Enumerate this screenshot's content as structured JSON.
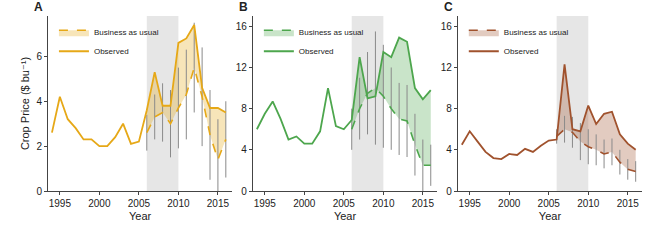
{
  "chart_data": [
    {
      "type": "line",
      "title": "A",
      "y_label": "Crop Price ($ bu⁻¹)",
      "x_label": "Year",
      "xlim": [
        1993.5,
        2016.8
      ],
      "xticks": [
        1995,
        2000,
        2005,
        2010,
        2015
      ],
      "ylim": [
        0,
        7.8
      ],
      "yticks": [
        0,
        2,
        4,
        6
      ],
      "grid": false,
      "legend": "upper left",
      "shaded_period": [
        2006,
        2010
      ],
      "series": [
        {
          "name": "Observed",
          "color": "#e6a817",
          "line_style": "solid",
          "x": [
            1994,
            1995,
            1996,
            1997,
            1998,
            1999,
            2000,
            2001,
            2002,
            2003,
            2004,
            2005,
            2006,
            2007,
            2008,
            2009,
            2010,
            2011,
            2012,
            2013,
            2014,
            2015,
            2016
          ],
          "values": [
            2.6,
            4.2,
            3.2,
            2.8,
            2.3,
            2.3,
            2.0,
            2.0,
            2.4,
            3.0,
            2.1,
            2.2,
            3.6,
            5.3,
            3.8,
            3.8,
            6.6,
            6.8,
            7.4,
            4.6,
            3.7,
            3.7,
            3.5
          ]
        },
        {
          "name": "Business as usual",
          "color": "#e6a817",
          "line_style": "dashed",
          "x": [
            2006,
            2007,
            2008,
            2009,
            2010,
            2011,
            2012,
            2013,
            2014,
            2015,
            2016
          ],
          "values": [
            2.6,
            3.3,
            3.5,
            3.0,
            3.7,
            4.3,
            5.5,
            4.2,
            2.5,
            1.4,
            2.3
          ],
          "error": [
            0.8,
            1.0,
            1.3,
            1.5,
            1.8,
            2.0,
            2.0,
            2.2,
            2.0,
            1.8,
            1.7
          ]
        }
      ]
    },
    {
      "type": "line",
      "title": "B",
      "x_label": "Year",
      "xlim": [
        1993.5,
        2016.8
      ],
      "xticks": [
        1995,
        2000,
        2005,
        2010,
        2015
      ],
      "ylim": [
        0,
        17
      ],
      "yticks": [
        0,
        4,
        8,
        12,
        16
      ],
      "grid": false,
      "legend": "upper left",
      "shaded_period": [
        2006,
        2010
      ],
      "series": [
        {
          "name": "Observed",
          "color": "#4da64d",
          "line_style": "solid",
          "x": [
            1994,
            1995,
            1996,
            1997,
            1998,
            1999,
            2000,
            2001,
            2002,
            2003,
            2004,
            2005,
            2006,
            2007,
            2008,
            2009,
            2010,
            2011,
            2012,
            2013,
            2014,
            2015,
            2016
          ],
          "values": [
            6.0,
            7.5,
            8.7,
            7.0,
            5.0,
            5.3,
            4.6,
            4.6,
            5.8,
            10.0,
            6.3,
            6.0,
            6.9,
            13.0,
            9.0,
            9.2,
            13.5,
            13.0,
            14.9,
            14.5,
            10.0,
            8.9,
            9.8
          ]
        },
        {
          "name": "Business as usual",
          "color": "#4da64d",
          "line_style": "dashed",
          "x": [
            2006,
            2007,
            2008,
            2009,
            2010,
            2011,
            2012,
            2013,
            2014,
            2015,
            2016
          ],
          "values": [
            6.0,
            8.0,
            9.5,
            10.0,
            9.2,
            8.0,
            7.0,
            6.8,
            4.5,
            2.5,
            2.5
          ],
          "error": [
            2.0,
            3.0,
            4.0,
            5.5,
            5.0,
            4.0,
            3.5,
            3.5,
            3.0,
            2.5,
            2.0
          ]
        }
      ]
    },
    {
      "type": "line",
      "title": "C",
      "x_label": "Year",
      "xlim": [
        1993.5,
        2016.8
      ],
      "xticks": [
        1995,
        2000,
        2005,
        2010,
        2015
      ],
      "ylim": [
        0,
        17
      ],
      "yticks": [
        0,
        4,
        8,
        12,
        16
      ],
      "grid": false,
      "legend": "upper left",
      "shaded_period": [
        2006,
        2010
      ],
      "series": [
        {
          "name": "Observed",
          "color": "#a0522d",
          "line_style": "solid",
          "x": [
            1994,
            1995,
            1996,
            1997,
            1998,
            1999,
            2000,
            2001,
            2002,
            2003,
            2004,
            2005,
            2006,
            2007,
            2008,
            2009,
            2010,
            2011,
            2012,
            2013,
            2014,
            2015,
            2016
          ],
          "values": [
            4.5,
            5.8,
            4.8,
            3.8,
            3.2,
            3.1,
            3.6,
            3.5,
            4.1,
            3.8,
            4.4,
            4.9,
            5.0,
            12.3,
            6.0,
            5.8,
            8.3,
            6.5,
            7.5,
            7.7,
            5.5,
            4.6,
            4.0
          ]
        },
        {
          "name": "Business as usual",
          "color": "#a0522d",
          "line_style": "dashed",
          "x": [
            2006,
            2007,
            2008,
            2009,
            2010,
            2011,
            2012,
            2013,
            2014,
            2015,
            2016
          ],
          "values": [
            5.3,
            6.0,
            5.7,
            4.8,
            4.3,
            4.0,
            3.6,
            3.8,
            2.8,
            2.1,
            1.9
          ],
          "error": [
            0.7,
            1.3,
            1.5,
            1.8,
            1.7,
            1.5,
            1.4,
            1.3,
            1.2,
            1.0,
            1.0
          ]
        }
      ]
    }
  ]
}
